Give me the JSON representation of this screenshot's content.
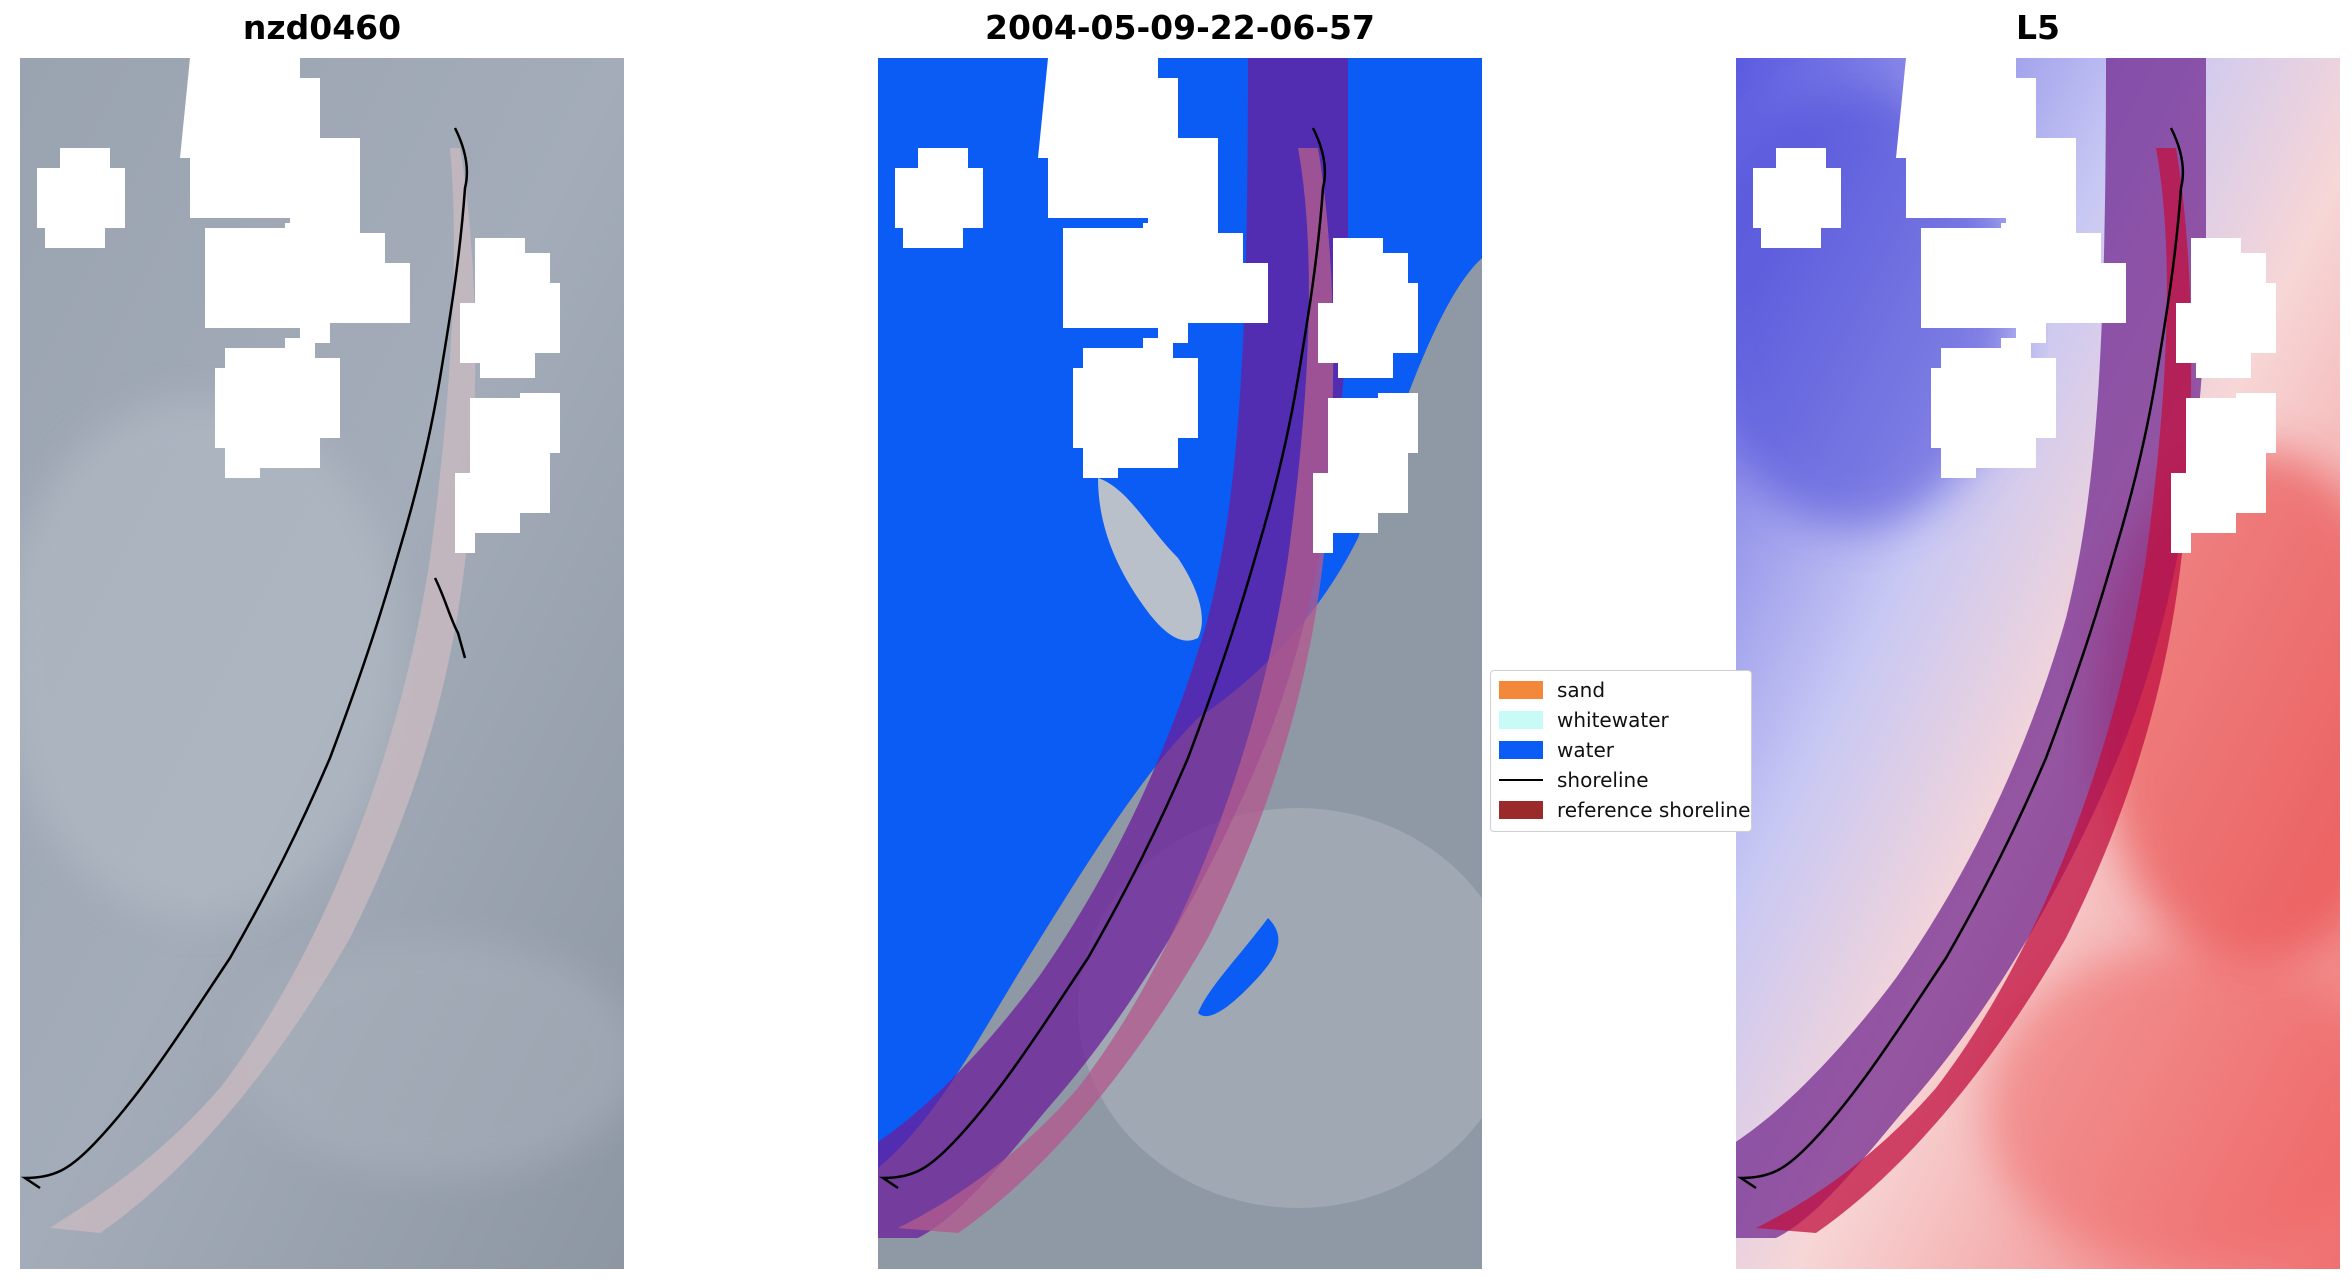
{
  "panels": [
    {
      "title": "nzd0460"
    },
    {
      "title": "2004-05-09-22-06-57"
    },
    {
      "title": "L5"
    }
  ],
  "legend": {
    "items": [
      {
        "label": "sand",
        "color": "#f4883a"
      },
      {
        "label": "whitewater",
        "color": "#c8fbf8"
      },
      {
        "label": "water",
        "color": "#0a5cf5"
      },
      {
        "label": "shoreline",
        "color": "#000000"
      },
      {
        "label": "reference shoreline",
        "color": "#9b2b2b"
      }
    ]
  },
  "colors": {
    "background_satellite": "#8e97a6",
    "water_class": "#0a5cf5",
    "reference_buffer": "#a02060",
    "index_low": "#2020d0",
    "index_high": "#e02020"
  }
}
